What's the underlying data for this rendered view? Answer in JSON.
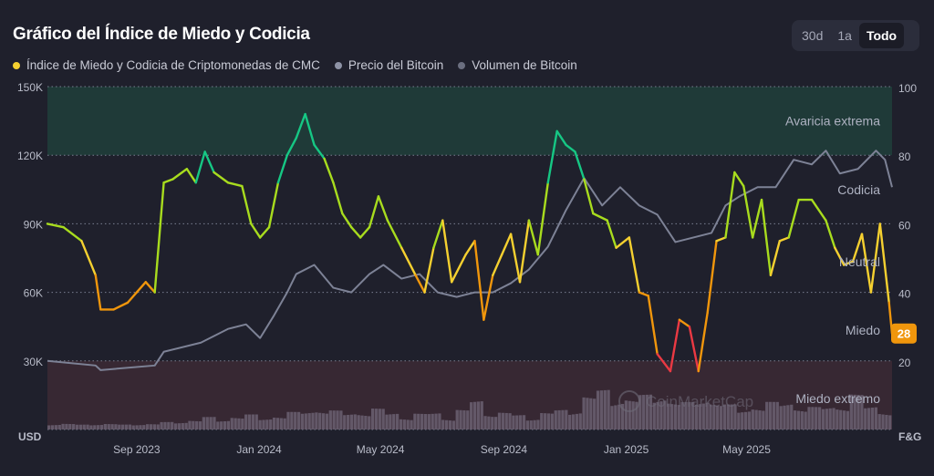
{
  "header": {
    "title": "Gráfico del Índice de Miedo y Codicia"
  },
  "range_buttons": [
    {
      "label": "30d",
      "active": false
    },
    {
      "label": "1a",
      "active": false
    },
    {
      "label": "Todo",
      "active": true
    }
  ],
  "legend": [
    {
      "label": "Índice de Miedo y Codicia de Criptomonedas de CMC",
      "color": "#f5d030"
    },
    {
      "label": "Precio del Bitcoin",
      "color": "#8e93a6"
    },
    {
      "label": "Volumen de Bitcoin",
      "color": "#6b6f80"
    }
  ],
  "watermark": "CoinMarketCap",
  "current_value": {
    "value": "28",
    "color": "#f0960c"
  },
  "chart_data": {
    "type": "line",
    "title": "Gráfico del Índice de Miedo y Codicia",
    "x_range": [
      "2023-06-04",
      "2025-09-23"
    ],
    "x_ticks": [
      {
        "date": "2023-09-01",
        "label": "Sep 2023"
      },
      {
        "date": "2024-01-01",
        "label": "Jan 2024"
      },
      {
        "date": "2024-05-01",
        "label": "May 2024"
      },
      {
        "date": "2024-09-01",
        "label": "Sep 2024"
      },
      {
        "date": "2025-01-01",
        "label": "Jan 2025"
      },
      {
        "date": "2025-05-01",
        "label": "May 2025"
      }
    ],
    "left_axis": {
      "label": "USD",
      "range": [
        0,
        150000
      ],
      "ticks": [
        {
          "v": 150000,
          "label": "150K"
        },
        {
          "v": 120000,
          "label": "120K"
        },
        {
          "v": 90000,
          "label": "90K"
        },
        {
          "v": 60000,
          "label": "60K"
        },
        {
          "v": 30000,
          "label": "30K"
        }
      ]
    },
    "right_axis": {
      "label": "F&G",
      "range": [
        0,
        100
      ],
      "ticks": [
        {
          "v": 100,
          "label": "100"
        },
        {
          "v": 80,
          "label": "80"
        },
        {
          "v": 60,
          "label": "60"
        },
        {
          "v": 40,
          "label": "40"
        },
        {
          "v": 20,
          "label": "20"
        }
      ]
    },
    "grid": true,
    "zones": [
      {
        "label": "Avaricia extrema",
        "from": 80,
        "to": 100,
        "color": "#1f3a38",
        "text_at": 90
      },
      {
        "label": "Codicia",
        "text_at": 70
      },
      {
        "label": "Neutral",
        "text_at": 49
      },
      {
        "label": "Miedo",
        "text_at": 29
      },
      {
        "label": "Miedo extremo",
        "from": 0,
        "to": 20,
        "color": "#372833",
        "text_at": 9
      }
    ],
    "series": [
      {
        "name": "Índice de Miedo y Codicia de Criptomonedas de CMC",
        "axis": "right",
        "points": [
          [
            "2023-06-04",
            60
          ],
          [
            "2023-06-20",
            59
          ],
          [
            "2023-07-08",
            55
          ],
          [
            "2023-07-22",
            45
          ],
          [
            "2023-07-27",
            35
          ],
          [
            "2023-08-09",
            35
          ],
          [
            "2023-08-23",
            37
          ],
          [
            "2023-09-01",
            40
          ],
          [
            "2023-09-10",
            43
          ],
          [
            "2023-09-19",
            40
          ],
          [
            "2023-09-28",
            72
          ],
          [
            "2023-10-07",
            73
          ],
          [
            "2023-10-21",
            76
          ],
          [
            "2023-10-30",
            72
          ],
          [
            "2023-11-08",
            81
          ],
          [
            "2023-11-17",
            75
          ],
          [
            "2023-12-01",
            72
          ],
          [
            "2023-12-15",
            71
          ],
          [
            "2023-12-24",
            60
          ],
          [
            "2024-01-02",
            56
          ],
          [
            "2024-01-11",
            59
          ],
          [
            "2024-01-20",
            72
          ],
          [
            "2024-01-29",
            80
          ],
          [
            "2024-02-07",
            85
          ],
          [
            "2024-02-16",
            92
          ],
          [
            "2024-02-25",
            83
          ],
          [
            "2024-03-06",
            79
          ],
          [
            "2024-03-15",
            72
          ],
          [
            "2024-03-24",
            63
          ],
          [
            "2024-04-02",
            59
          ],
          [
            "2024-04-11",
            56
          ],
          [
            "2024-04-20",
            59
          ],
          [
            "2024-04-29",
            68
          ],
          [
            "2024-05-08",
            61
          ],
          [
            "2024-05-22",
            53
          ],
          [
            "2024-06-05",
            45
          ],
          [
            "2024-06-14",
            40
          ],
          [
            "2024-06-23",
            53
          ],
          [
            "2024-07-02",
            61
          ],
          [
            "2024-07-11",
            43
          ],
          [
            "2024-07-25",
            51
          ],
          [
            "2024-08-03",
            55
          ],
          [
            "2024-08-12",
            32
          ],
          [
            "2024-08-21",
            45
          ],
          [
            "2024-08-30",
            51
          ],
          [
            "2024-09-08",
            57
          ],
          [
            "2024-09-17",
            43
          ],
          [
            "2024-09-26",
            61
          ],
          [
            "2024-10-05",
            51
          ],
          [
            "2024-10-15",
            72
          ],
          [
            "2024-10-24",
            87
          ],
          [
            "2024-11-02",
            83
          ],
          [
            "2024-11-11",
            81
          ],
          [
            "2024-11-20",
            73
          ],
          [
            "2024-11-29",
            63
          ],
          [
            "2024-12-13",
            61
          ],
          [
            "2024-12-22",
            53
          ],
          [
            "2025-01-04",
            56
          ],
          [
            "2025-01-14",
            40
          ],
          [
            "2025-01-23",
            39
          ],
          [
            "2025-02-01",
            22
          ],
          [
            "2025-02-14",
            17
          ],
          [
            "2025-02-23",
            32
          ],
          [
            "2025-03-05",
            30
          ],
          [
            "2025-03-14",
            17
          ],
          [
            "2025-03-23",
            34
          ],
          [
            "2025-04-01",
            55
          ],
          [
            "2025-04-10",
            56
          ],
          [
            "2025-04-19",
            75
          ],
          [
            "2025-04-28",
            71
          ],
          [
            "2025-05-07",
            56
          ],
          [
            "2025-05-16",
            67
          ],
          [
            "2025-05-25",
            45
          ],
          [
            "2025-06-03",
            55
          ],
          [
            "2025-06-12",
            56
          ],
          [
            "2025-06-22",
            67
          ],
          [
            "2025-07-05",
            67
          ],
          [
            "2025-07-19",
            61
          ],
          [
            "2025-07-28",
            53
          ],
          [
            "2025-08-06",
            48
          ],
          [
            "2025-08-15",
            49
          ],
          [
            "2025-08-24",
            57
          ],
          [
            "2025-09-02",
            40
          ],
          [
            "2025-09-11",
            60
          ],
          [
            "2025-09-20",
            37
          ],
          [
            "2025-09-23",
            28
          ]
        ]
      },
      {
        "name": "Precio del Bitcoin",
        "axis": "left",
        "color": "#7d8296",
        "points": [
          [
            "2023-06-04",
            30000
          ],
          [
            "2023-07-22",
            28000
          ],
          [
            "2023-07-27",
            26000
          ],
          [
            "2023-09-19",
            28000
          ],
          [
            "2023-09-28",
            34000
          ],
          [
            "2023-11-04",
            38000
          ],
          [
            "2023-12-01",
            44000
          ],
          [
            "2023-12-19",
            46000
          ],
          [
            "2024-01-02",
            40000
          ],
          [
            "2024-01-16",
            50000
          ],
          [
            "2024-01-29",
            60000
          ],
          [
            "2024-02-07",
            68000
          ],
          [
            "2024-02-25",
            72000
          ],
          [
            "2024-03-15",
            62000
          ],
          [
            "2024-04-02",
            60000
          ],
          [
            "2024-04-20",
            68000
          ],
          [
            "2024-05-04",
            72000
          ],
          [
            "2024-05-22",
            66000
          ],
          [
            "2024-06-09",
            68000
          ],
          [
            "2024-06-27",
            60000
          ],
          [
            "2024-07-16",
            58000
          ],
          [
            "2024-08-03",
            60000
          ],
          [
            "2024-08-21",
            60000
          ],
          [
            "2024-09-08",
            64000
          ],
          [
            "2024-09-26",
            70000
          ],
          [
            "2024-10-15",
            80000
          ],
          [
            "2024-11-02",
            96000
          ],
          [
            "2024-11-20",
            110000
          ],
          [
            "2024-12-08",
            98000
          ],
          [
            "2024-12-26",
            106000
          ],
          [
            "2025-01-14",
            98000
          ],
          [
            "2025-02-01",
            94000
          ],
          [
            "2025-02-19",
            82000
          ],
          [
            "2025-03-09",
            84000
          ],
          [
            "2025-03-27",
            86000
          ],
          [
            "2025-04-10",
            98000
          ],
          [
            "2025-04-24",
            102000
          ],
          [
            "2025-05-12",
            106000
          ],
          [
            "2025-05-30",
            106000
          ],
          [
            "2025-06-17",
            118000
          ],
          [
            "2025-07-05",
            116000
          ],
          [
            "2025-07-19",
            122000
          ],
          [
            "2025-08-02",
            112000
          ],
          [
            "2025-08-20",
            114000
          ],
          [
            "2025-09-07",
            122000
          ],
          [
            "2025-09-16",
            118000
          ],
          [
            "2025-09-23",
            106000
          ]
        ]
      },
      {
        "name": "Volumen de Bitcoin",
        "axis": "none",
        "color": "#6b6072",
        "relative_values": [
          0.15,
          0.12,
          0.1,
          0.14,
          0.12,
          0.1,
          0.13,
          0.12,
          0.15,
          0.18,
          0.2,
          0.25,
          0.22,
          0.28,
          0.3,
          0.25,
          0.3,
          0.35,
          0.4,
          0.45,
          0.38,
          0.35,
          0.4,
          0.42,
          0.35,
          0.3,
          0.32,
          0.35,
          0.3,
          0.4,
          0.6,
          0.45,
          0.35,
          0.3,
          0.32,
          0.35,
          0.4,
          0.5,
          0.7,
          0.8,
          0.75,
          0.65,
          0.7,
          0.8,
          0.6,
          0.55,
          0.7,
          0.6,
          0.5,
          0.45,
          0.5,
          0.55,
          0.6,
          0.5,
          0.45,
          0.5,
          0.55,
          0.7,
          0.5,
          0.45
        ]
      }
    ]
  }
}
